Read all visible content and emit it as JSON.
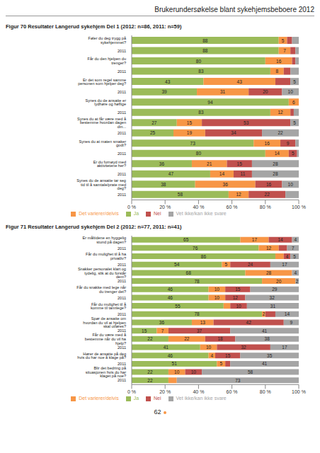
{
  "page_header": "Brukerundersøkelse blant sykehjemsbeboere 2012",
  "page_number": 62,
  "chart_data": [
    {
      "type": "bar",
      "title": "Figur 70 Resultater Langerud sykehjem Del 1 (2012: n=86, 2011: n=59)",
      "orientation": "horizontal",
      "stacked": true,
      "data_labels": true,
      "legend": "bottom",
      "categories": [
        "Føler du deg trygg på sykehjemmet?",
        "2011",
        "Får du den hjelpen du trenger?",
        "2011",
        "Er det som regel samme personen som hjelper deg?",
        "2011",
        "Synes du de ansatte er lydhøre og høflige",
        "2011",
        "Synes du at får være med å bestemme hvordan dagen din...",
        "2011",
        "Synes du at maten smaker godt?",
        "2011",
        "Er du fornøyd med aktivitetene her?",
        "2011",
        "Synes du de ansatte tar seg tid til å samtale/prate med deg?",
        "2011"
      ],
      "series": [
        {
          "name": "Ja",
          "color": "#9bbb59",
          "values": [
            88,
            88,
            80,
            83,
            43,
            39,
            94,
            83,
            27,
            25,
            73,
            80,
            36,
            47,
            38,
            58
          ],
          "value_labels": [
            "88",
            "88",
            "80",
            "83",
            "43",
            "39",
            "94",
            "83",
            "27",
            "25",
            "73",
            "80",
            "36",
            "47",
            "38",
            "58"
          ]
        },
        {
          "name": "Det varierer/delvis",
          "color": "#f79646",
          "values": [
            5,
            7,
            16,
            8,
            43,
            31,
            6,
            12,
            15,
            19,
            16,
            14,
            21,
            14,
            36,
            12
          ],
          "value_labels": [
            "5",
            "7",
            "16",
            "8",
            "43",
            "31",
            "6",
            "12",
            "15",
            "19",
            "16",
            "14",
            "21",
            "14",
            "36",
            "12"
          ]
        },
        {
          "name": "Nei",
          "color": "#c0504d",
          "values": [
            3,
            3,
            2,
            4,
            9,
            20,
            0,
            2,
            53,
            34,
            9,
            5,
            15,
            11,
            16,
            22
          ],
          "value_labels": [
            null,
            null,
            null,
            null,
            null,
            "20",
            null,
            null,
            "53",
            "34",
            "9",
            "5",
            "15",
            "11",
            "16",
            "22"
          ]
        },
        {
          "name": "Vet ikke/kan ikke svare",
          "color": "#a5a5a5",
          "values": [
            4,
            2,
            2,
            5,
            5,
            10,
            0,
            3,
            5,
            22,
            2,
            1,
            28,
            28,
            10,
            8
          ],
          "value_labels": [
            null,
            null,
            null,
            null,
            "5",
            "10",
            null,
            null,
            "5",
            "22",
            null,
            null,
            "28",
            "28",
            "10",
            null
          ]
        }
      ],
      "xlim": [
        0,
        100
      ],
      "xticks": [
        {
          "value": 0,
          "label": "0 %"
        },
        {
          "value": 20,
          "label": "20 %"
        },
        {
          "value": 40,
          "label": "40 %"
        },
        {
          "value": 60,
          "label": "60 %"
        },
        {
          "value": 80,
          "label": "80 %"
        },
        {
          "value": 100,
          "label": "100 %"
        }
      ]
    },
    {
      "type": "bar",
      "title": "Figur 71 Resultater Langerud sykehjem Del 2 (2012: n=77, 2011: n=41)",
      "orientation": "horizontal",
      "stacked": true,
      "data_labels": true,
      "legend": "bottom",
      "categories": [
        "Er måltidene en hyggelig stund på dagen?",
        "2011",
        "Får du mulighet til å ha privatliv?",
        "2011",
        "Snakker personalet klart og tydelig, slik at du forstår dem?",
        "2011",
        "Får du snakke med lege når du trenger det?",
        "2011",
        "Får du mulighet til å komme til tannlege?",
        "2011",
        "Spør de ansatte om hvordan du vil at hjelpen skal utføres?",
        "2011",
        "Får du være med å bestemme når du vil ha hjelp?",
        "2011",
        "Hører de ansatte på deg hvis du har noe å klage på?",
        "2011",
        "Blir det bedring på situasjonen hvis du har klaget på noe?",
        "2011"
      ],
      "series": [
        {
          "name": "Ja",
          "color": "#9bbb59",
          "values": [
            65,
            76,
            86,
            54,
            68,
            78,
            46,
            46,
            55,
            78,
            36,
            15,
            22,
            41,
            46,
            51,
            22,
            22
          ],
          "value_labels": [
            "65",
            "76",
            "86",
            "54",
            "68",
            "78",
            "46",
            "46",
            "55",
            "78",
            "36",
            "15",
            "22",
            "41",
            "46",
            "51",
            "22",
            "22"
          ]
        },
        {
          "name": "Det varierer/delvis",
          "color": "#f79646",
          "values": [
            17,
            12,
            5,
            5,
            28,
            20,
            10,
            10,
            4,
            2,
            13,
            7,
            22,
            10,
            4,
            5,
            10,
            5
          ],
          "value_labels": [
            "17",
            "12",
            null,
            "5",
            "28",
            "20",
            "10",
            "10",
            null,
            "2",
            "13",
            "7",
            "22",
            "10",
            "4",
            "5",
            "10",
            null
          ]
        },
        {
          "name": "Nei",
          "color": "#c0504d",
          "values": [
            14,
            5,
            4,
            24,
            0,
            0,
            15,
            12,
            10,
            6,
            42,
            37,
            18,
            32,
            15,
            3,
            10,
            0
          ],
          "value_labels": [
            "14",
            null,
            "4",
            "24",
            null,
            null,
            "15",
            "12",
            "10",
            null,
            "42",
            "37",
            "18",
            "32",
            "15",
            null,
            "10",
            null
          ]
        },
        {
          "name": "Vet ikke/kan ikke svare",
          "color": "#a5a5a5",
          "values": [
            4,
            7,
            5,
            17,
            4,
            2,
            29,
            32,
            31,
            14,
            9,
            41,
            38,
            17,
            35,
            41,
            58,
            73
          ],
          "value_labels": [
            "4",
            "7",
            "5",
            "17",
            "4",
            "2",
            "29",
            "32",
            "31",
            "14",
            "9",
            "41",
            "38",
            "17",
            "35",
            "41",
            "58",
            "73"
          ]
        }
      ],
      "xlim": [
        0,
        100
      ],
      "xticks": [
        {
          "value": 0,
          "label": "0 %"
        },
        {
          "value": 20,
          "label": "20 %"
        },
        {
          "value": 40,
          "label": "40 %"
        },
        {
          "value": 60,
          "label": "60 %"
        },
        {
          "value": 80,
          "label": "80 %"
        },
        {
          "value": 100,
          "label": "100 %"
        }
      ]
    }
  ]
}
